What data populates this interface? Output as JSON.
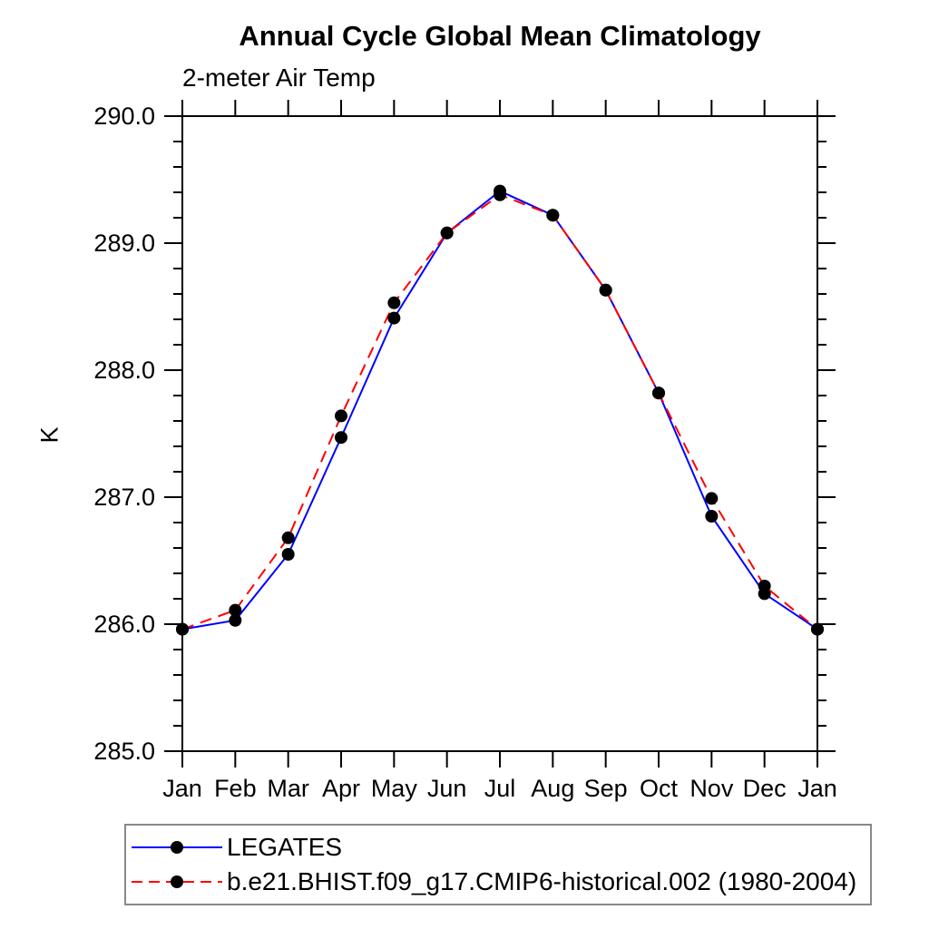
{
  "title": "Annual Cycle Global Mean Climatology",
  "subtitle": "2-meter Air Temp",
  "chart_data": {
    "type": "line",
    "title": "Annual Cycle Global Mean Climatology",
    "subtitle": "2-meter Air Temp",
    "xlabel": "",
    "ylabel": "K",
    "x_tick_labels": [
      "Jan",
      "Feb",
      "Mar",
      "Apr",
      "May",
      "Jun",
      "Jul",
      "Aug",
      "Sep",
      "Oct",
      "Nov",
      "Dec",
      "Jan"
    ],
    "ylim": [
      285.0,
      290.0
    ],
    "y_major_ticks": [
      285.0,
      286.0,
      287.0,
      288.0,
      289.0,
      290.0
    ],
    "y_tick_labels": [
      "285.0",
      "286.0",
      "287.0",
      "288.0",
      "289.0",
      "290.0"
    ],
    "y_minor_step": 0.2,
    "grid": false,
    "marker": "black-filled-circle",
    "legend_position": "below-left",
    "axis_color": "#000000",
    "series": [
      {
        "name": "LEGATES",
        "color": "#0000ff",
        "style": "solid",
        "values": [
          285.96,
          286.03,
          286.55,
          287.47,
          288.41,
          289.08,
          289.41,
          289.22,
          288.63,
          287.82,
          286.85,
          286.24,
          285.96
        ]
      },
      {
        "name": "b.e21.BHIST.f09_g17.CMIP6-historical.002 (1980-2004)",
        "color": "#ff0000",
        "style": "dashed",
        "values": [
          285.96,
          286.11,
          286.68,
          287.64,
          288.53,
          289.08,
          289.38,
          289.22,
          288.63,
          287.82,
          286.99,
          286.3,
          285.96
        ]
      }
    ]
  }
}
